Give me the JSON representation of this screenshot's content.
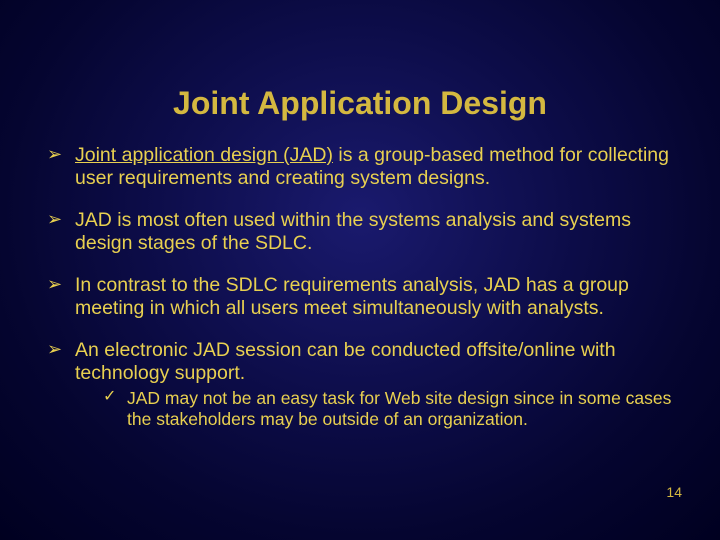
{
  "slide": {
    "title": "Joint Application Design",
    "page_number": "14",
    "bullets": [
      {
        "lead_underlined": "Joint application design (JAD)",
        "rest": " is a group-based method for collecting user requirements and creating system designs."
      },
      {
        "text": "JAD is most often used within the systems analysis and systems design stages of the SDLC."
      },
      {
        "text": "In contrast to the SDLC requirements analysis, JAD has a group meeting in which all users meet simultaneously with analysts."
      },
      {
        "text": "An electronic JAD session can be conducted offsite/online with technology support.",
        "sub": [
          "JAD may not be an easy task for Web site design since in some cases the stakeholders may be outside of an organization."
        ]
      }
    ]
  },
  "colors": {
    "title": "#d4b840",
    "body": "#e8d050",
    "bg_center": "#1a1a6e",
    "bg_outer": "#000020"
  }
}
